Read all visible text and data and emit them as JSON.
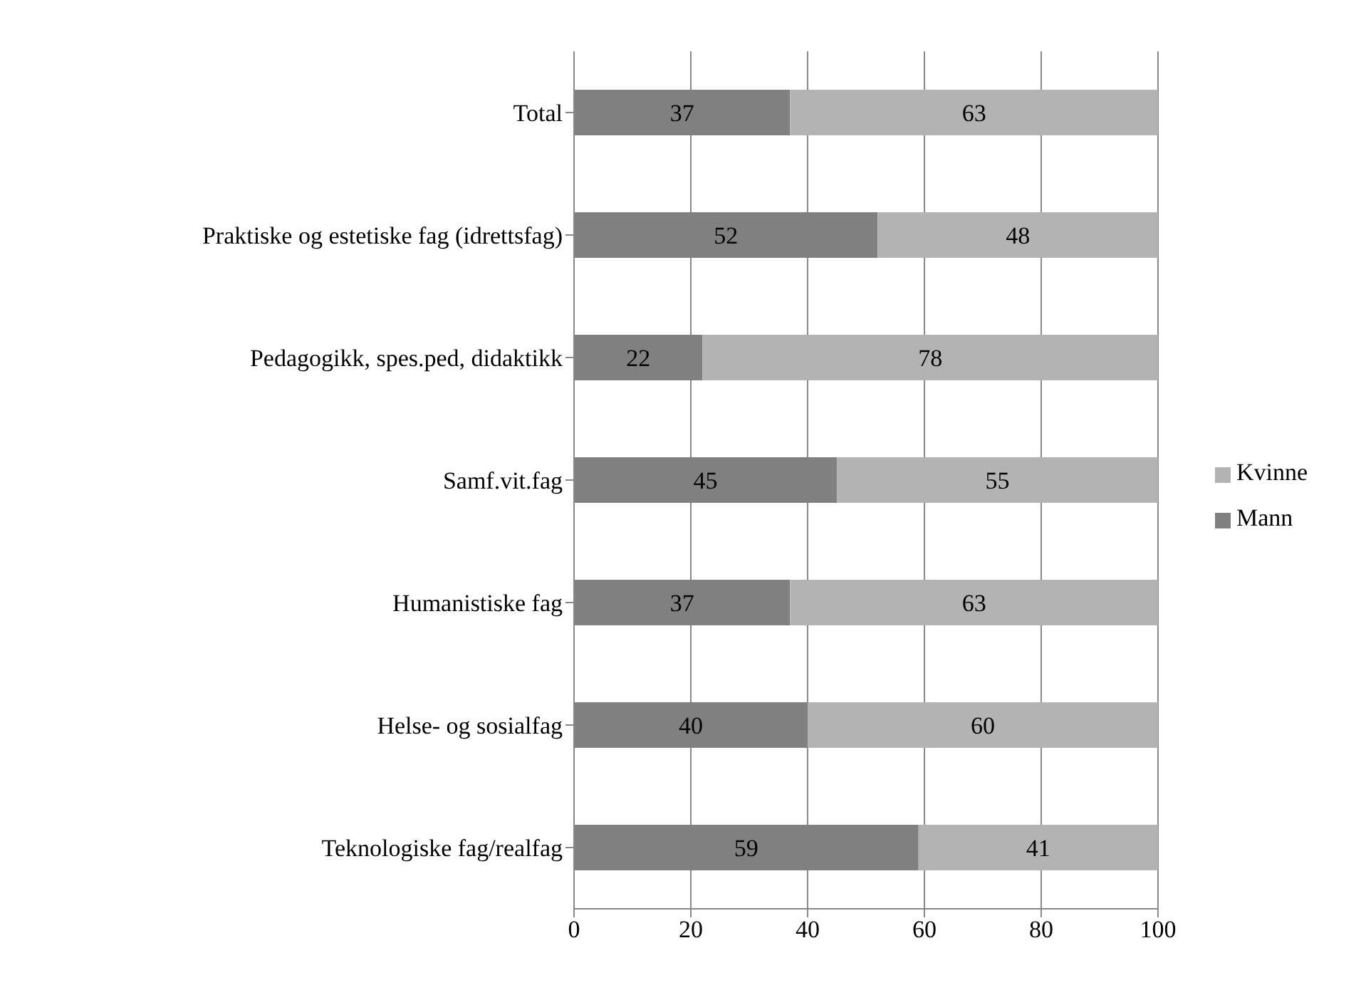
{
  "chart_data": {
    "type": "bar",
    "orientation": "horizontal",
    "stacked": true,
    "categories": [
      "Total",
      "Praktiske og estetiske fag (idrettsfag)",
      "Pedagogikk, spes.ped, didaktikk",
      "Samf.vit.fag",
      "Humanistiske fag",
      "Helse- og sosialfag",
      "Teknologiske fag/realfag"
    ],
    "series": [
      {
        "name": "Mann",
        "color": "#808080",
        "values": [
          37,
          52,
          22,
          45,
          37,
          40,
          59
        ]
      },
      {
        "name": "Kvinne",
        "color": "#b3b3b3",
        "values": [
          63,
          48,
          78,
          55,
          63,
          60,
          41
        ]
      }
    ],
    "xlim": [
      0,
      100
    ],
    "xticks": [
      0,
      20,
      40,
      60,
      80,
      100
    ],
    "grid": "x",
    "legend": "right",
    "data_labels": true
  }
}
